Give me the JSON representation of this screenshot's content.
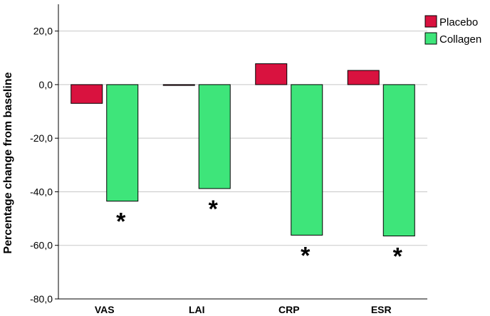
{
  "chart_data": {
    "type": "bar",
    "categories": [
      "VAS",
      "LAI",
      "CRP",
      "ESR"
    ],
    "series": [
      {
        "name": "Placebo",
        "color": "#d9123f",
        "values": [
          -7.0,
          -0.3,
          7.8,
          5.3
        ]
      },
      {
        "name": "Collagen",
        "color": "#3ee57a",
        "values": [
          -43.5,
          -38.8,
          -56.2,
          -56.5
        ]
      }
    ],
    "ylabel": "Percentage change from baseline",
    "ylim": [
      -80,
      30
    ],
    "yticks": [
      20,
      0,
      -20,
      -40,
      -60,
      -80
    ],
    "ytick_labels": [
      "20,0",
      "0,0",
      "-20,0",
      "-40,0",
      "-60,0",
      "-80,0"
    ],
    "grid": true,
    "legend_position": "top-right",
    "annotations": [
      {
        "category": "VAS",
        "text": "*"
      },
      {
        "category": "LAI",
        "text": "*"
      },
      {
        "category": "CRP",
        "text": "*"
      },
      {
        "category": "ESR",
        "text": "*"
      }
    ]
  }
}
